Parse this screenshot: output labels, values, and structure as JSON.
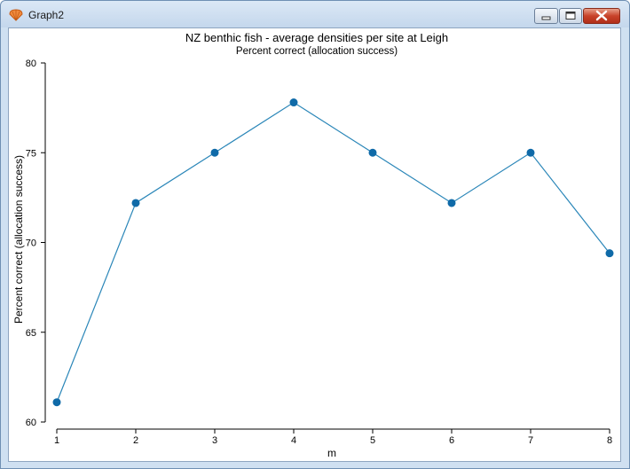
{
  "window": {
    "title": "Graph2",
    "icon": "shell-icon",
    "buttons": [
      "minimize-icon",
      "maximize-icon",
      "close-icon"
    ]
  },
  "chart_data": {
    "type": "line",
    "title": "NZ benthic fish - average densities per site at Leigh",
    "subtitle": "Percent correct (allocation success)",
    "xlabel": "m",
    "ylabel": "Percent correct (allocation success)",
    "x": [
      1,
      2,
      3,
      4,
      5,
      6,
      7,
      8
    ],
    "series": [
      {
        "values": [
          61.1,
          72.2,
          75.0,
          77.8,
          75.0,
          72.2,
          75.0,
          69.4
        ]
      }
    ],
    "xlim": [
      1,
      8
    ],
    "ylim": [
      60,
      80
    ],
    "xticks": [
      "1",
      "2",
      "3",
      "4",
      "5",
      "6",
      "7",
      "8"
    ],
    "yticks": [
      "60",
      "65",
      "70",
      "75",
      "80"
    ],
    "grid": false,
    "legend": "none",
    "line_color": "#2a86b8",
    "marker_color": "#0f6aa8"
  }
}
